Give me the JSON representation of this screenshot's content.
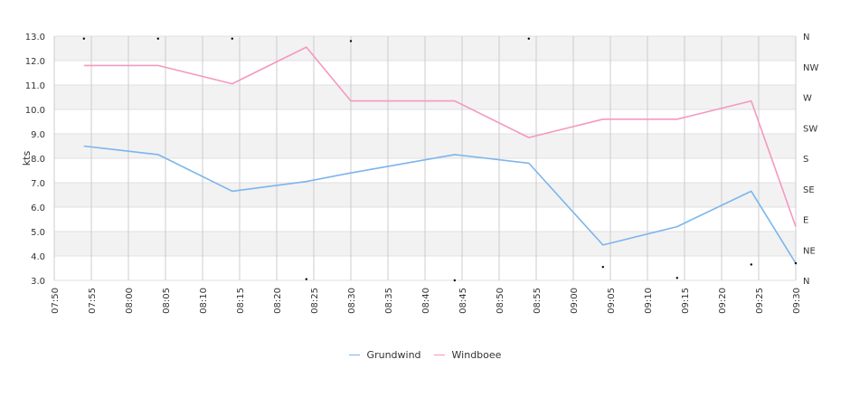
{
  "chart_data": {
    "type": "line",
    "ylabel": "kts",
    "ylim": [
      3,
      13
    ],
    "y_ticks": [
      "3.0",
      "4.0",
      "5.0",
      "6.0",
      "7.0",
      "8.0",
      "9.0",
      "10.0",
      "11.0",
      "12.0",
      "13.0"
    ],
    "y2_ticks": [
      "N",
      "NE",
      "E",
      "SE",
      "S",
      "SW",
      "W",
      "NW",
      "N"
    ],
    "x_ticks": [
      "07:50",
      "07:55",
      "08:00",
      "08:05",
      "08:10",
      "08:15",
      "08:20",
      "08:25",
      "08:30",
      "08:35",
      "08:40",
      "08:45",
      "08:50",
      "08:55",
      "09:00",
      "09:05",
      "09:10",
      "09:15",
      "09:20",
      "09:25",
      "09:30"
    ],
    "grid": true,
    "legend_position": "bottom-center",
    "x": [
      "07:54",
      "08:04",
      "08:14",
      "08:24",
      "08:30",
      "08:44",
      "08:54",
      "09:04",
      "09:14",
      "09:24",
      "09:30"
    ],
    "series": [
      {
        "name": "Grundwind",
        "color": "#7cb5ec",
        "values": [
          8.5,
          8.15,
          6.65,
          7.05,
          7.4,
          8.15,
          7.8,
          4.45,
          5.2,
          6.65,
          3.7
        ]
      },
      {
        "name": "Windboee",
        "color": "#f598c0",
        "values": [
          11.8,
          11.8,
          11.05,
          12.55,
          10.35,
          10.35,
          8.85,
          9.6,
          9.6,
          10.35,
          5.2
        ]
      }
    ],
    "direction_markers": {
      "x": [
        "07:54",
        "08:04",
        "08:14",
        "08:24",
        "08:30",
        "08:44",
        "08:54",
        "09:04",
        "09:14",
        "09:24",
        "09:30"
      ],
      "values": [
        12.9,
        12.9,
        12.9,
        3.05,
        12.8,
        3.0,
        12.9,
        3.55,
        3.1,
        3.65,
        3.7
      ]
    }
  }
}
